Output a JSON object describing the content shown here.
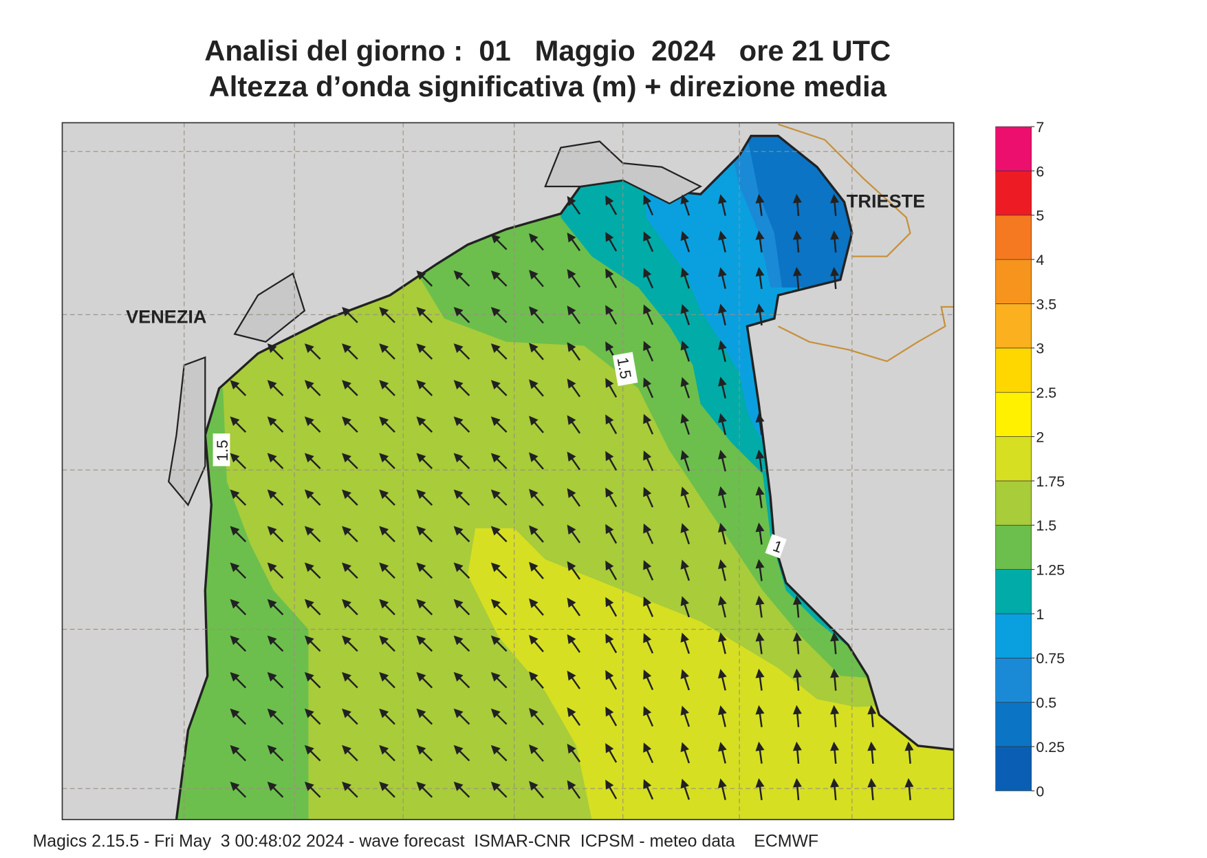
{
  "header": {
    "title": "Analisi del giorno :  01   Maggio  2024   ore 21 UTC",
    "subtitle": "Altezza d’onda significativa (m) + direzione media"
  },
  "map": {
    "labels": [
      "VENEZIA",
      "TRIESTE"
    ],
    "contour_labels": [
      1.5,
      1.5,
      1
    ]
  },
  "colorbar": {
    "ticks": [
      0,
      0.25,
      0.5,
      0.75,
      1,
      1.25,
      1.5,
      1.75,
      2,
      2.5,
      3,
      3.5,
      4,
      5,
      6,
      7
    ],
    "colors": [
      "#0a5fb4",
      "#0b74c4",
      "#1a8ad6",
      "#0aa0e0",
      "#00aba8",
      "#6cbf4c",
      "#a8cc3a",
      "#d6df22",
      "#fff100",
      "#ffd700",
      "#fbb020",
      "#f7941d",
      "#f47920",
      "#ed1c24",
      "#ec0f6e"
    ]
  },
  "footer": "Magics 2.15.5 - Fri May  3 00:48:02 2024 - wave forecast  ISMAR-CNR  ICPSM - meteo data    ECMWF"
}
